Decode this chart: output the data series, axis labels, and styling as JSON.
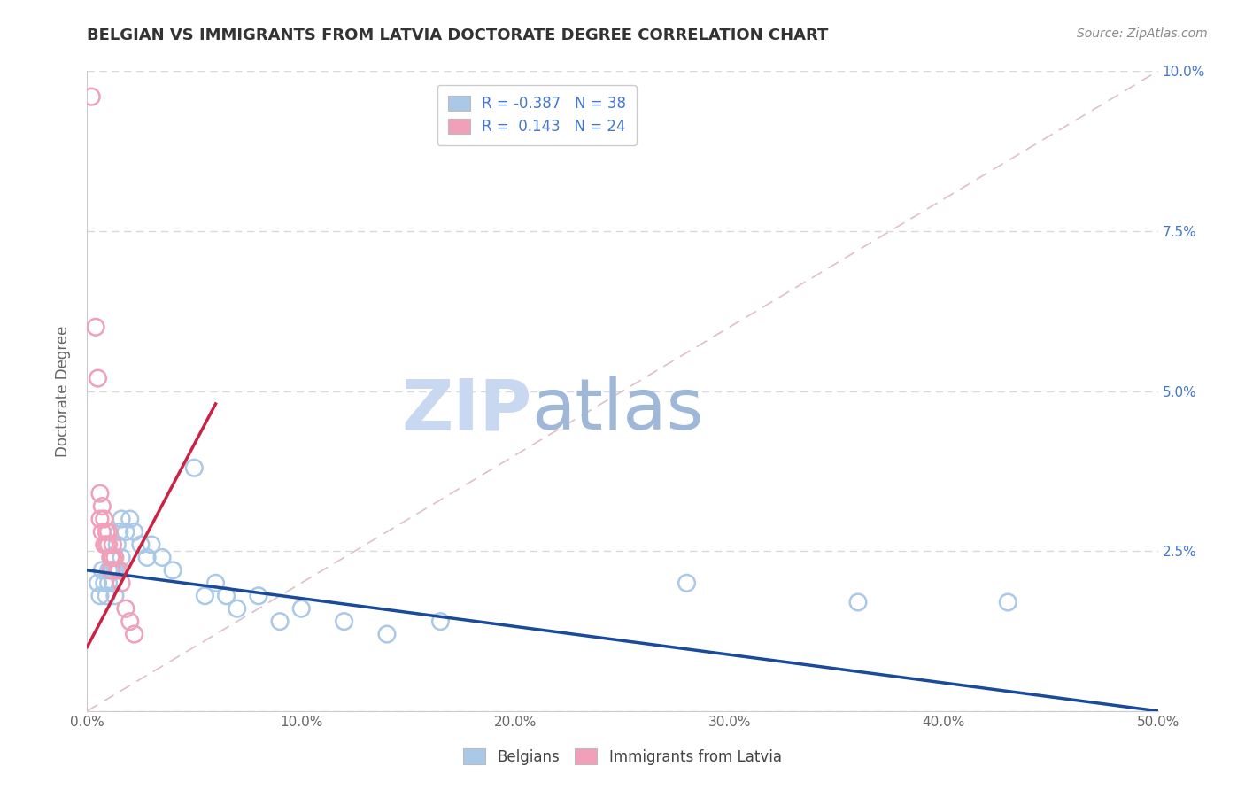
{
  "title": "BELGIAN VS IMMIGRANTS FROM LATVIA DOCTORATE DEGREE CORRELATION CHART",
  "source": "Source: ZipAtlas.com",
  "ylabel": "Doctorate Degree",
  "xlim": [
    0,
    0.5
  ],
  "ylim": [
    0,
    0.1
  ],
  "xticks": [
    0.0,
    0.1,
    0.2,
    0.3,
    0.4,
    0.5
  ],
  "yticks": [
    0.0,
    0.025,
    0.05,
    0.075,
    0.1
  ],
  "xticklabels": [
    "0.0%",
    "10.0%",
    "20.0%",
    "30.0%",
    "40.0%",
    "50.0%"
  ],
  "right_yticklabels": [
    "",
    "2.5%",
    "5.0%",
    "7.5%",
    "10.0%"
  ],
  "belgian_color": "#aac8e8",
  "latvian_color": "#f0a0b8",
  "belgian_line_color": "#1a4a9a",
  "latvian_line_color": "#cc2244",
  "diag_line_color": "#e0c0c8",
  "r_belgian": -0.387,
  "n_belgian": 38,
  "r_latvian": 0.143,
  "n_latvian": 24,
  "watermark": "ZIPatlas",
  "watermark_color_zip": "#c8d8f0",
  "watermark_color_atlas": "#a0b8d8",
  "legend_labels": [
    "Belgians",
    "Immigrants from Latvia"
  ],
  "belgian_scatter": [
    [
      0.005,
      0.02
    ],
    [
      0.006,
      0.018
    ],
    [
      0.007,
      0.022
    ],
    [
      0.008,
      0.02
    ],
    [
      0.009,
      0.018
    ],
    [
      0.01,
      0.022
    ],
    [
      0.01,
      0.02
    ],
    [
      0.011,
      0.024
    ],
    [
      0.012,
      0.022
    ],
    [
      0.012,
      0.02
    ],
    [
      0.013,
      0.022
    ],
    [
      0.013,
      0.018
    ],
    [
      0.014,
      0.026
    ],
    [
      0.015,
      0.028
    ],
    [
      0.016,
      0.03
    ],
    [
      0.016,
      0.024
    ],
    [
      0.018,
      0.028
    ],
    [
      0.02,
      0.03
    ],
    [
      0.022,
      0.028
    ],
    [
      0.025,
      0.026
    ],
    [
      0.028,
      0.024
    ],
    [
      0.03,
      0.026
    ],
    [
      0.035,
      0.024
    ],
    [
      0.04,
      0.022
    ],
    [
      0.05,
      0.038
    ],
    [
      0.055,
      0.018
    ],
    [
      0.06,
      0.02
    ],
    [
      0.065,
      0.018
    ],
    [
      0.07,
      0.016
    ],
    [
      0.08,
      0.018
    ],
    [
      0.09,
      0.014
    ],
    [
      0.1,
      0.016
    ],
    [
      0.12,
      0.014
    ],
    [
      0.14,
      0.012
    ],
    [
      0.165,
      0.014
    ],
    [
      0.28,
      0.02
    ],
    [
      0.36,
      0.017
    ],
    [
      0.43,
      0.017
    ]
  ],
  "latvian_scatter": [
    [
      0.002,
      0.096
    ],
    [
      0.004,
      0.06
    ],
    [
      0.005,
      0.052
    ],
    [
      0.006,
      0.034
    ],
    [
      0.006,
      0.03
    ],
    [
      0.007,
      0.032
    ],
    [
      0.007,
      0.028
    ],
    [
      0.008,
      0.03
    ],
    [
      0.008,
      0.026
    ],
    [
      0.009,
      0.028
    ],
    [
      0.009,
      0.026
    ],
    [
      0.01,
      0.028
    ],
    [
      0.01,
      0.026
    ],
    [
      0.011,
      0.024
    ],
    [
      0.011,
      0.022
    ],
    [
      0.012,
      0.026
    ],
    [
      0.012,
      0.024
    ],
    [
      0.013,
      0.024
    ],
    [
      0.014,
      0.022
    ],
    [
      0.015,
      0.022
    ],
    [
      0.016,
      0.02
    ],
    [
      0.018,
      0.016
    ],
    [
      0.02,
      0.014
    ],
    [
      0.022,
      0.012
    ]
  ],
  "background_color": "#ffffff",
  "grid_color": "#d8d8e4"
}
